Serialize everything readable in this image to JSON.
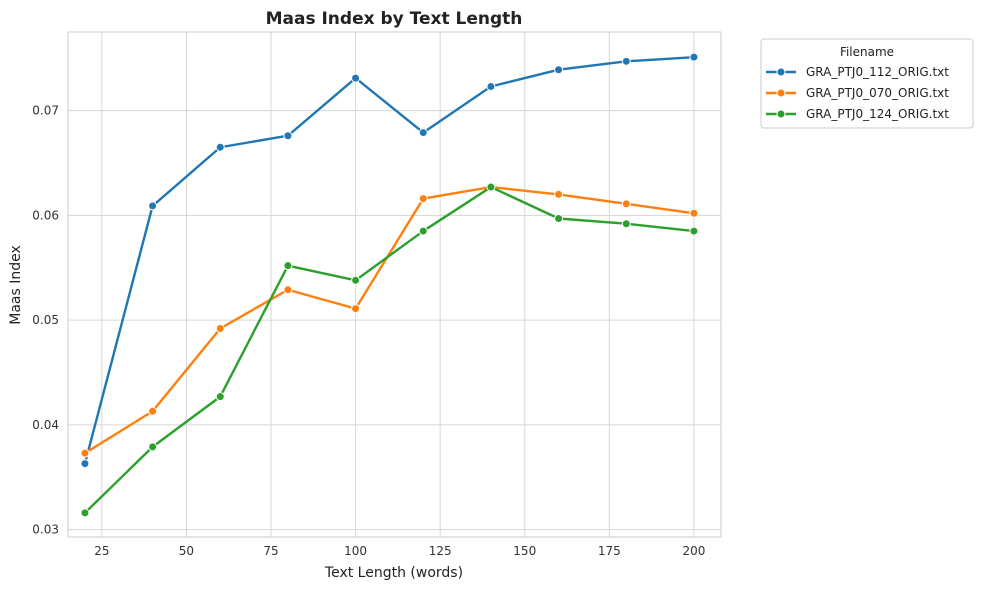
{
  "chart_data": {
    "type": "line",
    "title": "Maas Index by Text Length",
    "xlabel": "Text Length (words)",
    "ylabel": "Maas Index",
    "xlim": [
      15,
      208
    ],
    "ylim": [
      0.0293,
      0.0775
    ],
    "xticks": [
      25,
      50,
      75,
      100,
      125,
      150,
      175,
      200
    ],
    "xtick_labels": [
      "25",
      "50",
      "75",
      "100",
      "125",
      "150",
      "175",
      "200"
    ],
    "yticks": [
      0.03,
      0.04,
      0.05,
      0.06,
      0.07
    ],
    "ytick_labels": [
      "0.03",
      "0.04",
      "0.05",
      "0.06",
      "0.07"
    ],
    "grid": true,
    "legend": {
      "title": "Filename",
      "placement": "outside-right-top"
    },
    "x": [
      20,
      40,
      60,
      80,
      100,
      120,
      140,
      160,
      180,
      200
    ],
    "series": [
      {
        "name": "GRA_PTJ0_112_ORIG.txt",
        "color": "#1f77b4",
        "values": [
          0.0363,
          0.0609,
          0.0665,
          0.0676,
          0.0731,
          0.0679,
          0.0723,
          0.0739,
          0.0747,
          0.0751
        ]
      },
      {
        "name": "GRA_PTJ0_070_ORIG.txt",
        "color": "#ff7f0e",
        "values": [
          0.0373,
          0.0413,
          0.0492,
          0.0529,
          0.0511,
          0.0616,
          0.0627,
          0.062,
          0.0611,
          0.0602
        ]
      },
      {
        "name": "GRA_PTJ0_124_ORIG.txt",
        "color": "#2ca02c",
        "values": [
          0.0316,
          0.0379,
          0.0427,
          0.0552,
          0.0538,
          0.0585,
          0.0627,
          0.0597,
          0.0592,
          0.0585
        ]
      }
    ]
  }
}
